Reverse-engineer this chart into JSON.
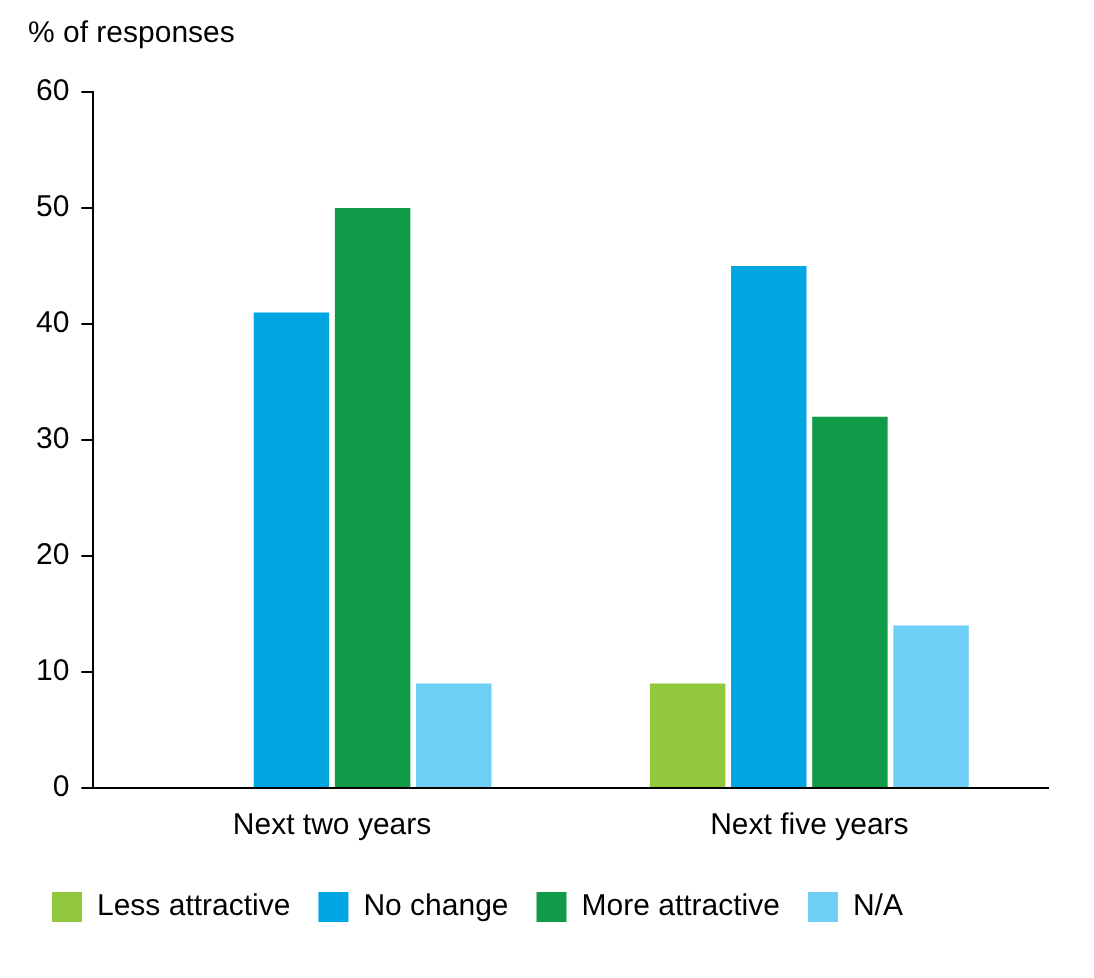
{
  "chart_data": {
    "type": "bar",
    "ylabel": "% of responses",
    "categories": [
      "Next two years",
      "Next five years"
    ],
    "series": [
      {
        "name": "Less attractive",
        "color": "#92c83e",
        "values": [
          null,
          9
        ]
      },
      {
        "name": "No change",
        "color": "#00a6e2",
        "values": [
          41,
          45
        ]
      },
      {
        "name": "More attractive",
        "color": "#109b48",
        "values": [
          50,
          32
        ]
      },
      {
        "name": "N/A",
        "color": "#6dcff6",
        "values": [
          9,
          14
        ]
      }
    ],
    "ylim": [
      0,
      60
    ],
    "yticks": [
      0,
      10,
      20,
      30,
      40,
      50,
      60
    ],
    "grid": false,
    "legend": "bottom"
  }
}
